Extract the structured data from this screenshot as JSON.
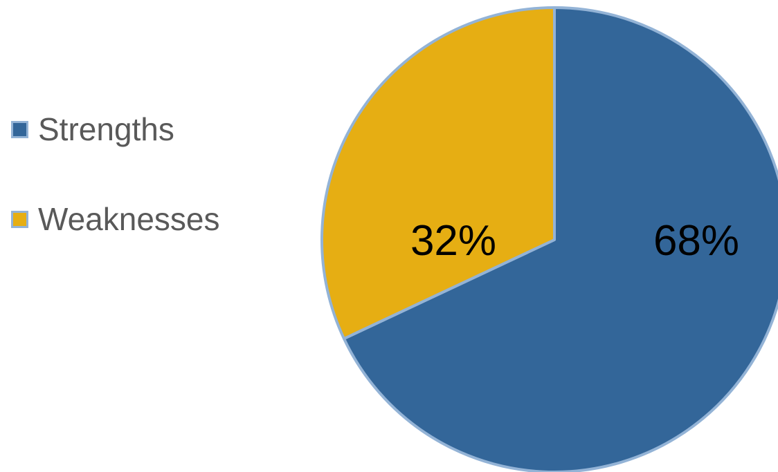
{
  "chart_data": {
    "type": "pie",
    "title": "",
    "categories": [
      "Strengths",
      "Weaknesses"
    ],
    "values": [
      68,
      32
    ],
    "labels": [
      "68%",
      "32%"
    ],
    "colors": [
      "#336699",
      "#e6ae13"
    ],
    "edge_color": "#93b3d6",
    "legend_position": "left"
  },
  "legend": {
    "items": [
      {
        "label": "Strengths",
        "color": "#336699"
      },
      {
        "label": "Weaknesses",
        "color": "#e6ae13"
      }
    ]
  }
}
